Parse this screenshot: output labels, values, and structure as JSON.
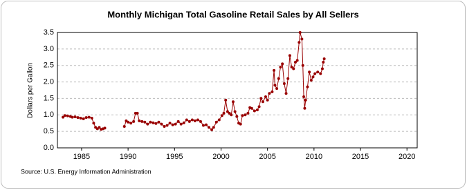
{
  "chart_data": {
    "type": "line",
    "title": "Monthly Michigan Total Gasoline Retail Sales by All Sellers",
    "y_label": "Dollars per Gallon",
    "source": "Source: U.S. Energy Information Administration",
    "xlim": [
      1982.4,
      2021.1
    ],
    "xticks": [
      1985,
      1990,
      1995,
      2000,
      2005,
      2010,
      2015,
      2020
    ],
    "ylim": [
      0,
      3.5
    ],
    "yticks": [
      {
        "value": 0,
        "label": "0.0"
      },
      {
        "value": 0.5,
        "label": "0.5"
      },
      {
        "value": 1,
        "label": "1.0"
      },
      {
        "value": 1.5,
        "label": "1.5"
      },
      {
        "value": 2,
        "label": "2.0"
      },
      {
        "value": 2.5,
        "label": "2.5"
      },
      {
        "value": 3,
        "label": "3.0"
      },
      {
        "value": 3.5,
        "label": "3.5"
      }
    ],
    "grid": true,
    "color": "#990000",
    "x": [
      1983.0,
      1983.2,
      1983.5,
      1983.8,
      1984.0,
      1984.3,
      1984.6,
      1984.9,
      1985.2,
      1985.5,
      1985.8,
      1986.1,
      1986.3,
      1986.5,
      1986.7,
      1986.9,
      1987.1,
      1987.3,
      1987.5,
      1988.5,
      1989.6,
      1989.8,
      1990.0,
      1990.3,
      1990.6,
      1990.8,
      1991.0,
      1991.2,
      1991.5,
      1991.8,
      1992.1,
      1992.4,
      1992.7,
      1993.0,
      1993.3,
      1993.6,
      1993.9,
      1994.2,
      1994.5,
      1994.8,
      1995.1,
      1995.4,
      1995.7,
      1996.0,
      1996.3,
      1996.6,
      1996.9,
      1997.2,
      1997.5,
      1997.8,
      1998.1,
      1998.4,
      1998.7,
      1999.0,
      1999.2,
      1999.5,
      1999.8,
      2000.1,
      2000.3,
      2000.5,
      2000.7,
      2000.9,
      2001.1,
      2001.3,
      2001.5,
      2001.7,
      2001.9,
      2002.1,
      2002.3,
      2002.6,
      2002.9,
      2003.1,
      2003.3,
      2003.6,
      2003.9,
      2004.1,
      2004.3,
      2004.5,
      2004.8,
      2005.0,
      2005.2,
      2005.5,
      2005.7,
      2005.8,
      2006.0,
      2006.2,
      2006.4,
      2006.6,
      2006.8,
      2007.0,
      2007.2,
      2007.4,
      2007.6,
      2007.8,
      2008.0,
      2008.2,
      2008.4,
      2008.5,
      2008.7,
      2008.8,
      2008.9,
      2009.0,
      2009.1,
      2009.3,
      2009.5,
      2009.7,
      2009.9,
      2010.1,
      2010.4,
      2010.7,
      2010.9,
      2011.0,
      2011.1
    ],
    "values": [
      0.93,
      0.98,
      0.97,
      0.95,
      0.93,
      0.94,
      0.92,
      0.9,
      0.88,
      0.92,
      0.93,
      0.9,
      0.75,
      0.62,
      0.58,
      0.62,
      0.56,
      0.58,
      0.6,
      null,
      0.65,
      0.82,
      0.78,
      0.75,
      0.8,
      1.05,
      1.05,
      0.82,
      0.8,
      0.78,
      0.72,
      0.78,
      0.76,
      0.74,
      0.78,
      0.72,
      0.65,
      0.68,
      0.75,
      0.7,
      0.72,
      0.8,
      0.72,
      0.76,
      0.85,
      0.8,
      0.85,
      0.82,
      0.85,
      0.8,
      0.68,
      0.7,
      0.62,
      0.55,
      0.62,
      0.78,
      0.85,
      0.98,
      1.05,
      1.45,
      1.1,
      1.05,
      1.0,
      1.4,
      1.1,
      0.95,
      0.75,
      0.72,
      0.98,
      1.0,
      1.05,
      1.22,
      1.2,
      1.12,
      1.15,
      1.25,
      1.5,
      1.4,
      1.55,
      1.45,
      1.65,
      1.7,
      2.35,
      1.9,
      1.8,
      2.1,
      2.45,
      2.55,
      1.95,
      1.65,
      2.1,
      2.8,
      2.45,
      2.4,
      2.6,
      2.65,
      3.2,
      3.5,
      3.3,
      2.5,
      1.55,
      1.2,
      1.45,
      1.85,
      2.3,
      2.05,
      2.15,
      2.25,
      2.3,
      2.25,
      2.4,
      2.6,
      2.7
    ]
  }
}
